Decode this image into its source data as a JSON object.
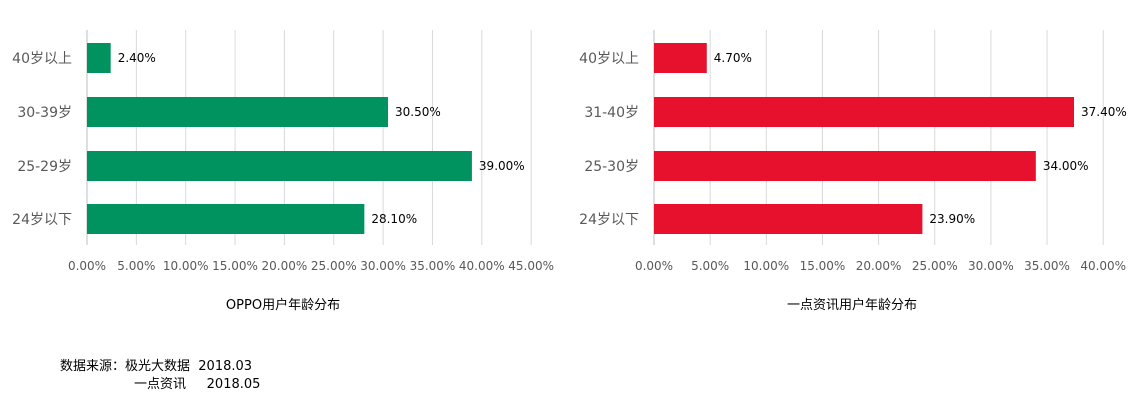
{
  "chart_data": [
    {
      "type": "bar",
      "orientation": "horizontal",
      "title": "OPPO用户年龄分布",
      "categories": [
        "40岁以上",
        "30-39岁",
        "25-29岁",
        "24岁以下"
      ],
      "values": [
        2.4,
        30.5,
        39.0,
        28.1
      ],
      "value_labels": [
        "2.40%",
        "30.50%",
        "39.00%",
        "28.10%"
      ],
      "xlim": [
        0,
        45
      ],
      "x_ticks": [
        "0.00%",
        "5.00%",
        "10.00%",
        "15.00%",
        "20.00%",
        "25.00%",
        "30.00%",
        "35.00%",
        "40.00%",
        "45.00%"
      ],
      "grid": true,
      "color": "#00935f"
    },
    {
      "type": "bar",
      "orientation": "horizontal",
      "title": "一点资讯用户年龄分布",
      "categories": [
        "40岁以上",
        "31-40岁",
        "25-30岁",
        "24岁以下"
      ],
      "values": [
        4.7,
        37.4,
        34.0,
        23.9
      ],
      "value_labels": [
        "4.70%",
        "37.40%",
        "34.00%",
        "23.90%"
      ],
      "xlim": [
        0,
        40
      ],
      "x_ticks": [
        "0.00%",
        "5.00%",
        "10.00%",
        "15.00%",
        "20.00%",
        "25.00%",
        "30.00%",
        "35.00%",
        "40.00%"
      ],
      "grid": true,
      "color": "#e8112d"
    }
  ],
  "source": {
    "label": "数据来源：",
    "line1": "极光大数据  2018.03",
    "line2": "一点资讯     2018.05"
  }
}
